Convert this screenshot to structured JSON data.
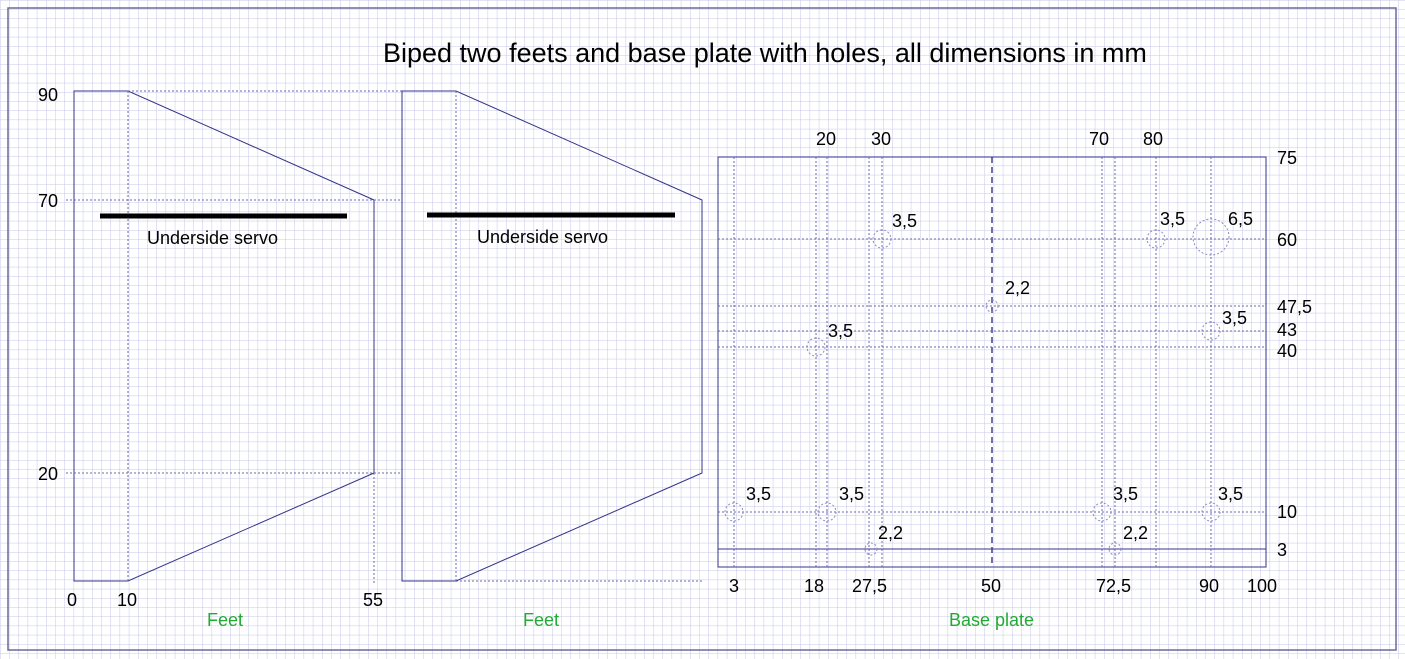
{
  "title": "Biped two feets and base plate with holes, all dimensions in mm",
  "feet": {
    "caption_left": "Feet",
    "caption_right": "Feet",
    "servo_label_left": "Underside servo",
    "servo_label_right": "Underside servo",
    "y_labels": [
      "90",
      "70",
      "20"
    ],
    "x_labels": [
      "0",
      "10",
      "55"
    ]
  },
  "base_plate": {
    "caption": "Base plate",
    "top_labels": [
      "20",
      "30",
      "70",
      "80"
    ],
    "bottom_labels": [
      "3",
      "18",
      "27,5",
      "50",
      "72,5",
      "90",
      "100"
    ],
    "right_labels": [
      "75",
      "60",
      "47,5",
      "43",
      "40",
      "10",
      "3"
    ],
    "hole_labels": {
      "h30_60": "3,5",
      "h80_60": "3,5",
      "h90_60": "6,5",
      "h50_475": "2,2",
      "h90_43": "3,5",
      "h18_40": "3,5",
      "h3_10": "3,5",
      "h18_10": "3,5",
      "h725_10": "3,5",
      "h90_10": "3,5",
      "h275_3": "2,2",
      "h725_3": "2,2"
    }
  },
  "colors": {
    "grid_line": "#c6c6ea",
    "grid_major": "#9a9ad6",
    "drawing_line": "#34348c",
    "caption": "#22aa33"
  }
}
